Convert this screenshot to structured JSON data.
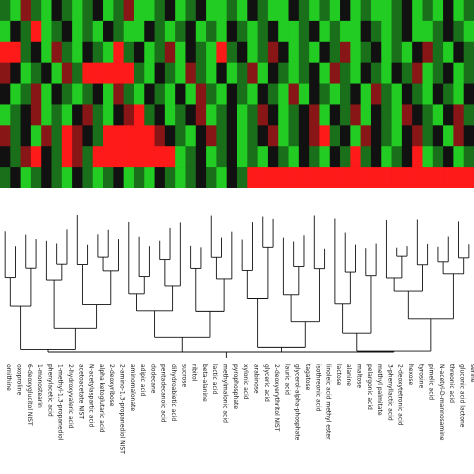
{
  "chart_data": {
    "type": "heatmap",
    "title": "",
    "xlabel": "",
    "ylabel": "",
    "legend": "none",
    "colors": {
      "high": "#ff1a1a",
      "mid": "#111111",
      "low": "#22cc22",
      "dendrogram": "#111111",
      "background": "#ffffff"
    },
    "leaf_labels": [
      "ornithine",
      "oxoproline",
      "6-deoxyglucitol NIST",
      "1-monostearin",
      "phenylacetic acid",
      "1-methyl-1,3-propanediol",
      "2-hydroxyvaleric acid",
      "acetoacetate NIST",
      "N-acetylaspartic acid",
      "alpha ketoglutaric acid",
      "2-deoxyribose",
      "2-amino-1,3-propanediol NIST",
      "aminomalonate",
      "adipic acid",
      "dodecane",
      "pentadecanoic acid",
      "dihydroabietic acid",
      "sucrose",
      "ribitol",
      "beta-alanine",
      "lactic acid",
      "methylmalonic acid",
      "pyrophosphate",
      "xylonic acid",
      "arabinose",
      "glyceric acid",
      "2-deoxyerythritol NIST",
      "lauric acid",
      "glycerol-alpha-phosphate",
      "tagatose",
      "isothreonic acid",
      "linoleic acid methyl ester",
      "lactose",
      "alanine",
      "maltose",
      "pelargonic acid",
      "methyl palmitate",
      "3-phenyllactic acid",
      "2-deoxytetronic acid",
      "hexose",
      "tyrosine",
      "pimelic acid",
      "N-acetyl-D-mannosamine",
      "threonic acid",
      "gluconic acid lactone",
      "serine"
    ],
    "rows": 9,
    "columns": 46,
    "values": [
      [
        -1,
        -2,
        1,
        -1,
        -2,
        0,
        -1,
        -2,
        -1,
        0,
        -2,
        -1,
        1,
        -2,
        -2,
        -1,
        0,
        -2,
        -1,
        0,
        -2,
        -2,
        -1,
        -2,
        0,
        -1,
        -2,
        -2,
        0,
        -1,
        -2,
        -1,
        -2,
        0,
        -2,
        -1,
        -2,
        -2,
        -1,
        0,
        -2,
        -1,
        -2,
        0,
        -2,
        -1
      ],
      [
        -2,
        0,
        -1,
        2,
        -2,
        -1,
        0,
        -2,
        -1,
        -2,
        0,
        -1,
        -2,
        -2,
        0,
        -1,
        -2,
        -1,
        0,
        -2,
        -1,
        -2,
        0,
        -1,
        -2,
        -1,
        0,
        -2,
        -2,
        -1,
        0,
        -2,
        -1,
        -2,
        -2,
        0,
        -1,
        -2,
        -1,
        0,
        -2,
        -2,
        -1,
        0,
        -1,
        -2
      ],
      [
        2,
        2,
        -1,
        0,
        -2,
        1,
        -1,
        -2,
        0,
        -1,
        -2,
        2,
        -1,
        0,
        -2,
        -1,
        1,
        -2,
        0,
        -1,
        -2,
        2,
        -1,
        0,
        -2,
        -1,
        1,
        0,
        -2,
        -1,
        -2,
        0,
        -1,
        1,
        -2,
        -1,
        0,
        -2,
        -1,
        -2,
        0,
        1,
        -1,
        -2,
        0,
        -1
      ],
      [
        1,
        0,
        -2,
        -1,
        0,
        -2,
        1,
        -1,
        2,
        2,
        2,
        2,
        2,
        -1,
        -2,
        0,
        -1,
        -2,
        1,
        -1,
        -2,
        0,
        -2,
        -1,
        1,
        -2,
        0,
        -1,
        -2,
        -1,
        0,
        -2,
        1,
        -1,
        -2,
        0,
        -1,
        -2,
        0,
        -1,
        1,
        -2,
        -1,
        0,
        -2,
        -1
      ],
      [
        0,
        -2,
        -1,
        1,
        -2,
        0,
        -1,
        -2,
        -1,
        0,
        -2,
        1,
        -1,
        -2,
        0,
        -1,
        -2,
        0,
        -2,
        1,
        -1,
        -2,
        0,
        -1,
        -2,
        0,
        -1,
        -2,
        1,
        -2,
        0,
        -1,
        -2,
        -1,
        0,
        -2,
        1,
        -1,
        -2,
        0,
        -1,
        -2,
        0,
        -1,
        -2,
        0
      ],
      [
        -2,
        -1,
        0,
        1,
        -2,
        -1,
        -2,
        0,
        1,
        -1,
        -2,
        0,
        1,
        2,
        -1,
        0,
        -2,
        -1,
        0,
        1,
        -2,
        -1,
        0,
        -2,
        -1,
        1,
        0,
        -2,
        -1,
        0,
        1,
        -2,
        0,
        -1,
        1,
        -2,
        0,
        -1,
        -2,
        1,
        0,
        -1,
        -2,
        0,
        1,
        -1
      ],
      [
        1,
        -1,
        0,
        -2,
        1,
        -1,
        2,
        1,
        0,
        -1,
        2,
        2,
        2,
        2,
        2,
        1,
        0,
        -1,
        -2,
        0,
        1,
        -1,
        0,
        -2,
        -1,
        0,
        1,
        -2,
        -1,
        0,
        1,
        2,
        -1,
        0,
        -2,
        1,
        0,
        -1,
        -2,
        0,
        1,
        -1,
        0,
        -2,
        1,
        0
      ],
      [
        0,
        -1,
        1,
        2,
        0,
        -1,
        2,
        1,
        -1,
        2,
        2,
        2,
        2,
        2,
        2,
        2,
        2,
        -2,
        -1,
        0,
        -2,
        -1,
        0,
        -2,
        -1,
        -2,
        0,
        -1,
        -2,
        0,
        -1,
        -2,
        0,
        -1,
        2,
        -1,
        0,
        -2,
        -1,
        0,
        2,
        -2,
        -1,
        0,
        -2,
        -1
      ],
      [
        -1,
        0,
        -2,
        -1,
        0,
        -1,
        -2,
        0,
        -1,
        -2,
        -1,
        0,
        -2,
        -1,
        -2,
        0,
        -1,
        -2,
        -1,
        0,
        -1,
        -2,
        0,
        -1,
        2,
        2,
        2,
        2,
        2,
        2,
        2,
        2,
        2,
        2,
        2,
        2,
        2,
        2,
        2,
        2,
        2,
        2,
        2,
        2,
        2,
        2
      ]
    ]
  }
}
